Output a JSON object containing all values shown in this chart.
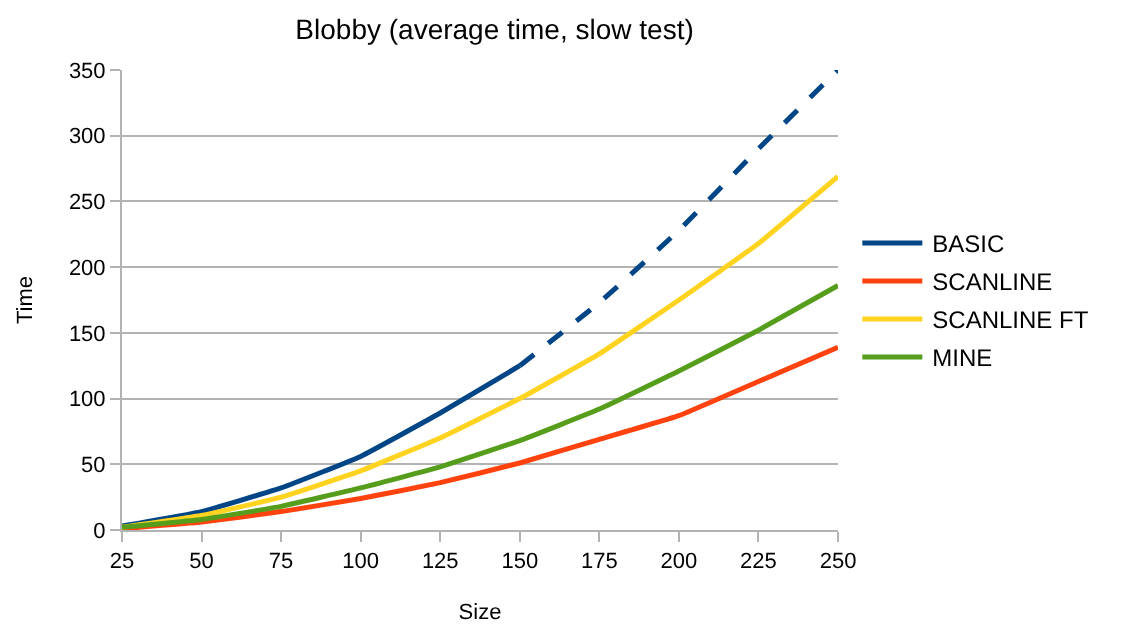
{
  "chart_data": {
    "type": "line",
    "title": "Blobby (average time, slow test)",
    "xlabel": "Size",
    "ylabel": "Time",
    "x": [
      25,
      50,
      75,
      100,
      125,
      150,
      175,
      200,
      225,
      250
    ],
    "xlim": [
      25,
      250
    ],
    "xticks": [
      25,
      50,
      75,
      100,
      125,
      150,
      175,
      200,
      225,
      250
    ],
    "ylim": [
      0,
      350
    ],
    "yticks": [
      0,
      50,
      100,
      150,
      200,
      250,
      300,
      350
    ],
    "grid": "y",
    "legend": "right",
    "marker": "none",
    "series": [
      {
        "name": "BASIC",
        "color": "#004586",
        "values": [
          3,
          14,
          32,
          56,
          89,
          125,
          null,
          null,
          null,
          null
        ]
      },
      {
        "name": "SCANLINE",
        "color": "#ff420e",
        "values": [
          1,
          6,
          14,
          24,
          36,
          51,
          69,
          87,
          113,
          139
        ]
      },
      {
        "name": "SCANLINE FT",
        "color": "#ffd320",
        "values": [
          2,
          11,
          25,
          45,
          70,
          100,
          134,
          175,
          218,
          269
        ]
      },
      {
        "name": "MINE",
        "color": "#579d1c",
        "values": [
          2,
          8,
          18,
          32,
          48,
          68,
          92,
          121,
          152,
          186
        ]
      },
      {
        "color": "#004586",
        "line_style": "dashed",
        "values": [
          null,
          null,
          null,
          null,
          null,
          125,
          173,
          228,
          290,
          350
        ]
      }
    ]
  }
}
